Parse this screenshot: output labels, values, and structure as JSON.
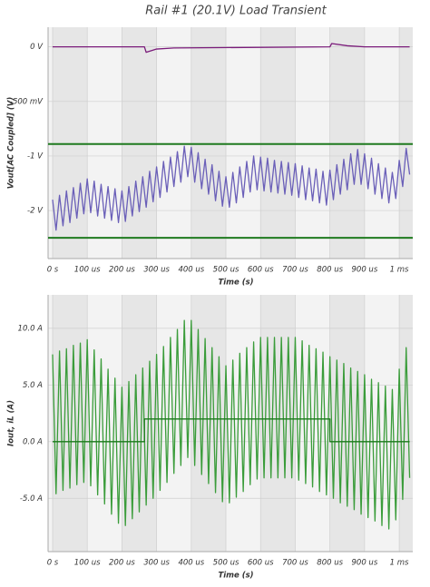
{
  "chart_data": [
    {
      "type": "line",
      "title": "Rail #1 (20.1V) Load Transient",
      "xlabel": "Time (s)",
      "ylabel": "Vout[AC Coupled] (V)",
      "xlim": [
        -13,
        1039
      ],
      "ylim": [
        -1.94,
        0.18
      ],
      "grid": true,
      "xticks": [
        {
          "value": 0,
          "label": "0 s"
        },
        {
          "value": 100,
          "label": "100 us"
        },
        {
          "value": 200,
          "label": "200 us"
        },
        {
          "value": 300,
          "label": "300 us"
        },
        {
          "value": 400,
          "label": "400 us"
        },
        {
          "value": 500,
          "label": "500 us"
        },
        {
          "value": 600,
          "label": "600 us"
        },
        {
          "value": 700,
          "label": "700 us"
        },
        {
          "value": 800,
          "label": "800 us"
        },
        {
          "value": 900,
          "label": "900 us"
        },
        {
          "value": 1000,
          "label": "1 ms"
        }
      ],
      "yticks": [
        {
          "value": 0,
          "label": "0 V"
        },
        {
          "value": -0.5,
          "label": "-500 mV"
        },
        {
          "value": -1,
          "label": "-1 V"
        },
        {
          "value": -1.5,
          "label": "-2 V"
        }
      ],
      "hlines": [
        {
          "value": -0.89,
          "color": "#1f7a1f"
        },
        {
          "value": -1.75,
          "color": "#1f7a1f"
        }
      ],
      "series": [
        {
          "color": "#7a1b7a",
          "x": [
            0,
            265,
            270,
            300,
            350,
            800,
            805,
            850,
            900,
            1030
          ],
          "values": [
            0,
            0,
            -0.05,
            -0.02,
            -0.01,
            0,
            0.03,
            0.01,
            0,
            0
          ]
        },
        {
          "color": "#6a5fb8",
          "x": [
            0,
            10,
            20,
            30,
            40,
            50,
            60,
            70,
            80,
            90,
            100,
            110,
            120,
            130,
            140,
            150,
            160,
            170,
            180,
            190,
            200,
            210,
            220,
            230,
            240,
            250,
            260,
            270,
            280,
            290,
            300,
            310,
            320,
            330,
            340,
            350,
            360,
            370,
            380,
            390,
            400,
            410,
            420,
            430,
            440,
            450,
            460,
            470,
            480,
            490,
            500,
            510,
            520,
            530,
            540,
            550,
            560,
            570,
            580,
            590,
            600,
            610,
            620,
            630,
            640,
            650,
            660,
            670,
            680,
            690,
            700,
            710,
            720,
            730,
            740,
            750,
            760,
            770,
            780,
            790,
            800,
            810,
            820,
            830,
            840,
            850,
            860,
            870,
            880,
            890,
            900,
            910,
            920,
            930,
            940,
            950,
            960,
            970,
            980,
            990,
            1000,
            1010,
            1020,
            1030
          ],
          "values": [
            -1.4,
            -1.68,
            -1.36,
            -1.64,
            -1.32,
            -1.61,
            -1.29,
            -1.57,
            -1.25,
            -1.53,
            -1.21,
            -1.52,
            -1.23,
            -1.55,
            -1.26,
            -1.57,
            -1.28,
            -1.59,
            -1.3,
            -1.61,
            -1.32,
            -1.6,
            -1.28,
            -1.55,
            -1.23,
            -1.51,
            -1.19,
            -1.47,
            -1.14,
            -1.42,
            -1.1,
            -1.38,
            -1.05,
            -1.33,
            -1.01,
            -1.28,
            -0.96,
            -1.24,
            -0.91,
            -1.19,
            -0.92,
            -1.24,
            -0.97,
            -1.3,
            -1.03,
            -1.35,
            -1.08,
            -1.41,
            -1.14,
            -1.46,
            -1.19,
            -1.47,
            -1.15,
            -1.43,
            -1.1,
            -1.38,
            -1.05,
            -1.33,
            -1.0,
            -1.31,
            -1.01,
            -1.32,
            -1.02,
            -1.33,
            -1.04,
            -1.34,
            -1.05,
            -1.35,
            -1.06,
            -1.36,
            -1.07,
            -1.38,
            -1.09,
            -1.4,
            -1.11,
            -1.41,
            -1.12,
            -1.43,
            -1.14,
            -1.45,
            -1.13,
            -1.4,
            -1.08,
            -1.35,
            -1.03,
            -1.31,
            -0.98,
            -1.26,
            -0.94,
            -1.26,
            -0.98,
            -1.3,
            -1.02,
            -1.35,
            -1.07,
            -1.39,
            -1.11,
            -1.43,
            -1.15,
            -1.39,
            -1.04,
            -1.28,
            -0.93,
            -1.17
          ]
        }
      ]
    },
    {
      "type": "line",
      "xlabel": "Time (s)",
      "ylabel": "Iout, iL (A)",
      "xlim": [
        -13,
        1039
      ],
      "ylim": [
        -9.7,
        12.95
      ],
      "grid": true,
      "xticks": [
        {
          "value": 0,
          "label": "0 s"
        },
        {
          "value": 100,
          "label": "100 us"
        },
        {
          "value": 200,
          "label": "200 us"
        },
        {
          "value": 300,
          "label": "300 us"
        },
        {
          "value": 400,
          "label": "400 us"
        },
        {
          "value": 500,
          "label": "500 us"
        },
        {
          "value": 600,
          "label": "600 us"
        },
        {
          "value": 700,
          "label": "700 us"
        },
        {
          "value": 800,
          "label": "800 us"
        },
        {
          "value": 900,
          "label": "900 us"
        },
        {
          "value": 1000,
          "label": "1 ms"
        }
      ],
      "yticks": [
        {
          "value": 10,
          "label": "10.0 A"
        },
        {
          "value": 5,
          "label": "5.0 A"
        },
        {
          "value": 0,
          "label": "0.0 A"
        },
        {
          "value": -5,
          "label": "-5.0 A"
        }
      ],
      "series": [
        {
          "color": "#3a9c3a",
          "x": [
            0,
            10,
            20,
            30,
            40,
            50,
            60,
            70,
            80,
            90,
            100,
            110,
            120,
            130,
            140,
            150,
            160,
            170,
            180,
            190,
            200,
            210,
            220,
            230,
            240,
            250,
            260,
            270,
            280,
            290,
            300,
            310,
            320,
            330,
            340,
            350,
            360,
            370,
            380,
            390,
            400,
            410,
            420,
            430,
            440,
            450,
            460,
            470,
            480,
            490,
            500,
            510,
            520,
            530,
            540,
            550,
            560,
            570,
            580,
            590,
            600,
            610,
            620,
            630,
            640,
            650,
            660,
            670,
            680,
            690,
            700,
            710,
            720,
            730,
            740,
            750,
            760,
            770,
            780,
            790,
            800,
            810,
            820,
            830,
            840,
            850,
            860,
            870,
            880,
            890,
            900,
            910,
            920,
            930,
            940,
            950,
            960,
            970,
            980,
            990,
            1000,
            1010,
            1020,
            1030
          ],
          "values": [
            7.7,
            -4.6,
            8.0,
            -4.3,
            8.2,
            -4.1,
            8.5,
            -3.8,
            8.7,
            -3.6,
            9.0,
            -3.9,
            8.1,
            -4.7,
            7.3,
            -5.5,
            6.4,
            -6.4,
            5.6,
            -7.2,
            4.8,
            -7.4,
            5.3,
            -6.8,
            5.9,
            -6.2,
            6.5,
            -5.6,
            7.1,
            -5.0,
            7.7,
            -4.3,
            8.4,
            -3.6,
            9.2,
            -2.8,
            9.9,
            -2.1,
            10.7,
            -1.4,
            10.7,
            -2.1,
            9.9,
            -2.9,
            9.1,
            -3.7,
            8.3,
            -4.5,
            7.5,
            -5.3,
            6.7,
            -5.4,
            7.2,
            -4.9,
            7.8,
            -4.4,
            8.3,
            -3.8,
            8.8,
            -3.3,
            9.2,
            -3.2,
            9.2,
            -3.2,
            9.2,
            -3.2,
            9.2,
            -3.2,
            9.2,
            -3.2,
            9.2,
            -3.4,
            8.9,
            -3.7,
            8.5,
            -4.0,
            8.2,
            -4.4,
            7.9,
            -4.7,
            7.5,
            -5.0,
            7.2,
            -5.4,
            6.9,
            -5.7,
            6.5,
            -6.0,
            6.2,
            -6.4,
            5.9,
            -6.7,
            5.5,
            -7.0,
            5.2,
            -7.4,
            4.9,
            -7.7,
            4.6,
            -6.9,
            6.4,
            -5.1,
            8.3,
            -3.2
          ]
        },
        {
          "color": "#1a7a1a",
          "x": [
            0,
            265,
            265,
            800,
            800,
            1030
          ],
          "values": [
            0,
            0,
            2,
            2,
            0,
            0
          ]
        }
      ]
    }
  ]
}
